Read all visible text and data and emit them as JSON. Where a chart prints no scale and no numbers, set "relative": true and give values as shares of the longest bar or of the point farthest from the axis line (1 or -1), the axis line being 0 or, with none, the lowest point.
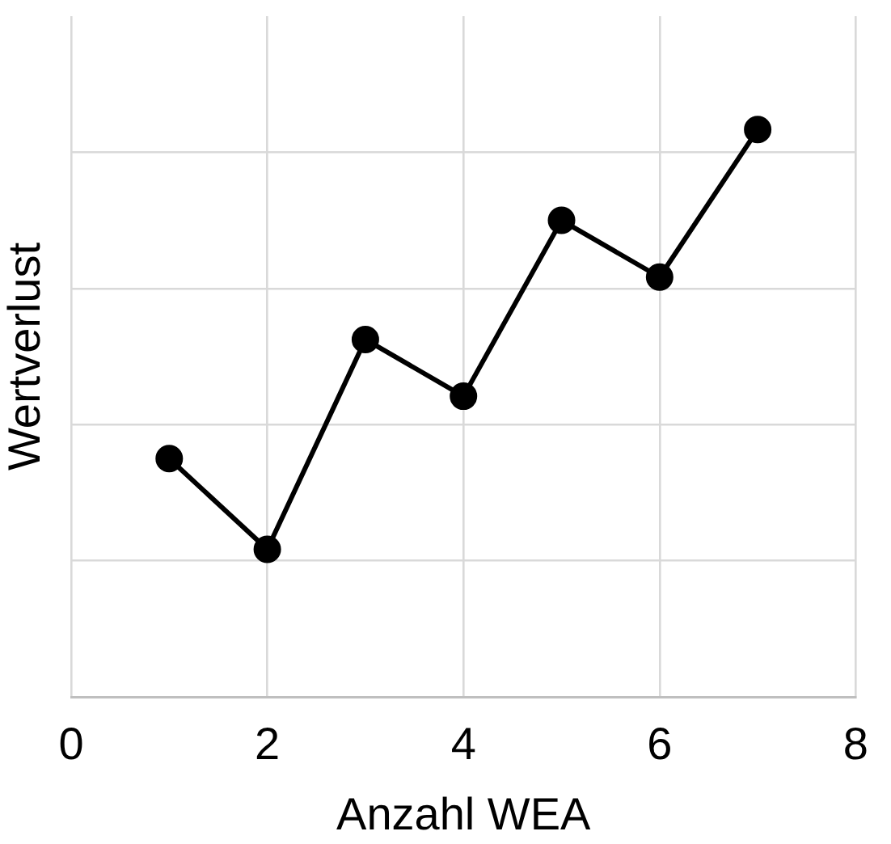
{
  "chart_data": {
    "type": "line",
    "xlabel": "Anzahl WEA",
    "ylabel": "Wertverlust",
    "x": [
      1,
      2,
      3,
      4,
      5,
      6,
      7
    ],
    "values": [
      0.42,
      0.26,
      0.63,
      0.53,
      0.84,
      0.74,
      1
    ],
    "color": "#000000",
    "relative": true,
    "xlim": [
      0,
      8
    ],
    "xticks": [
      0,
      2,
      4,
      6,
      8
    ],
    "grid": true,
    "marker": "circle",
    "line_style": "solid"
  }
}
